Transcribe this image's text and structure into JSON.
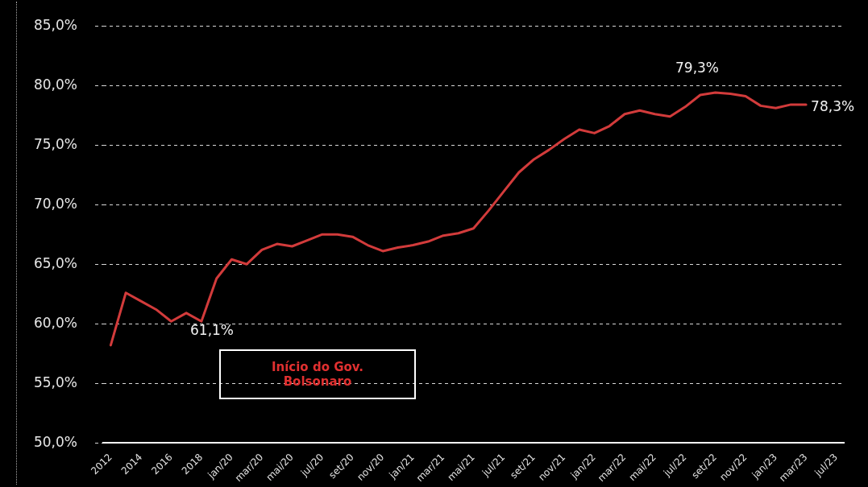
{
  "chart_data": {
    "type": "line",
    "categories": [
      "2012",
      null,
      "2014",
      null,
      "2016",
      null,
      "2018",
      null,
      "jan/20",
      null,
      "mar/20",
      null,
      "mai/20",
      null,
      "jul/20",
      null,
      "set/20",
      null,
      "nov/20",
      null,
      "jan/21",
      null,
      "mar/21",
      null,
      "mai/21",
      null,
      "jul/21",
      null,
      "set/21",
      null,
      "nov/21",
      null,
      "jan/22",
      null,
      "mar/22",
      null,
      "mai/22",
      null,
      "jul/22",
      null,
      "set/22",
      null,
      "nov/22",
      null,
      "jan/23",
      null,
      "mar/23",
      null,
      "jul/23"
    ],
    "series": [
      {
        "color": "#d23b3b",
        "values": [
          58.2,
          62.6,
          61.9,
          61.2,
          60.2,
          60.9,
          60.2,
          63.8,
          65.4,
          65.0,
          66.2,
          66.7,
          66.5,
          67.0,
          67.5,
          67.5,
          67.3,
          66.6,
          66.1,
          66.4,
          66.6,
          66.9,
          67.4,
          67.6,
          68.0,
          69.5,
          71.1,
          72.7,
          73.8,
          74.6,
          75.5,
          76.3,
          76.0,
          76.6,
          77.6,
          77.9,
          77.6,
          77.4,
          78.2,
          79.2,
          79.4,
          79.3,
          79.1,
          78.3,
          78.1,
          78.4,
          78.4,
          null,
          null
        ]
      }
    ],
    "ylim": [
      50,
      85
    ],
    "yticks": [
      {
        "value": 50,
        "label": "50,0%"
      },
      {
        "value": 55,
        "label": "55,0%"
      },
      {
        "value": 60,
        "label": "60,0%"
      },
      {
        "value": 65,
        "label": "65,0%"
      },
      {
        "value": 70,
        "label": "70,0%"
      },
      {
        "value": 75,
        "label": "75,0%"
      },
      {
        "value": 80,
        "label": "80,0%"
      },
      {
        "value": 85,
        "label": "85,0%"
      }
    ],
    "grid": "y",
    "legend": false,
    "marker": "none",
    "line_style": "solid",
    "annotations": [
      "61,1%",
      "79,3%",
      {
        "text": "78,3%",
        "x": "mar/23"
      },
      "Início do Gov. Bolsonaro"
    ]
  }
}
